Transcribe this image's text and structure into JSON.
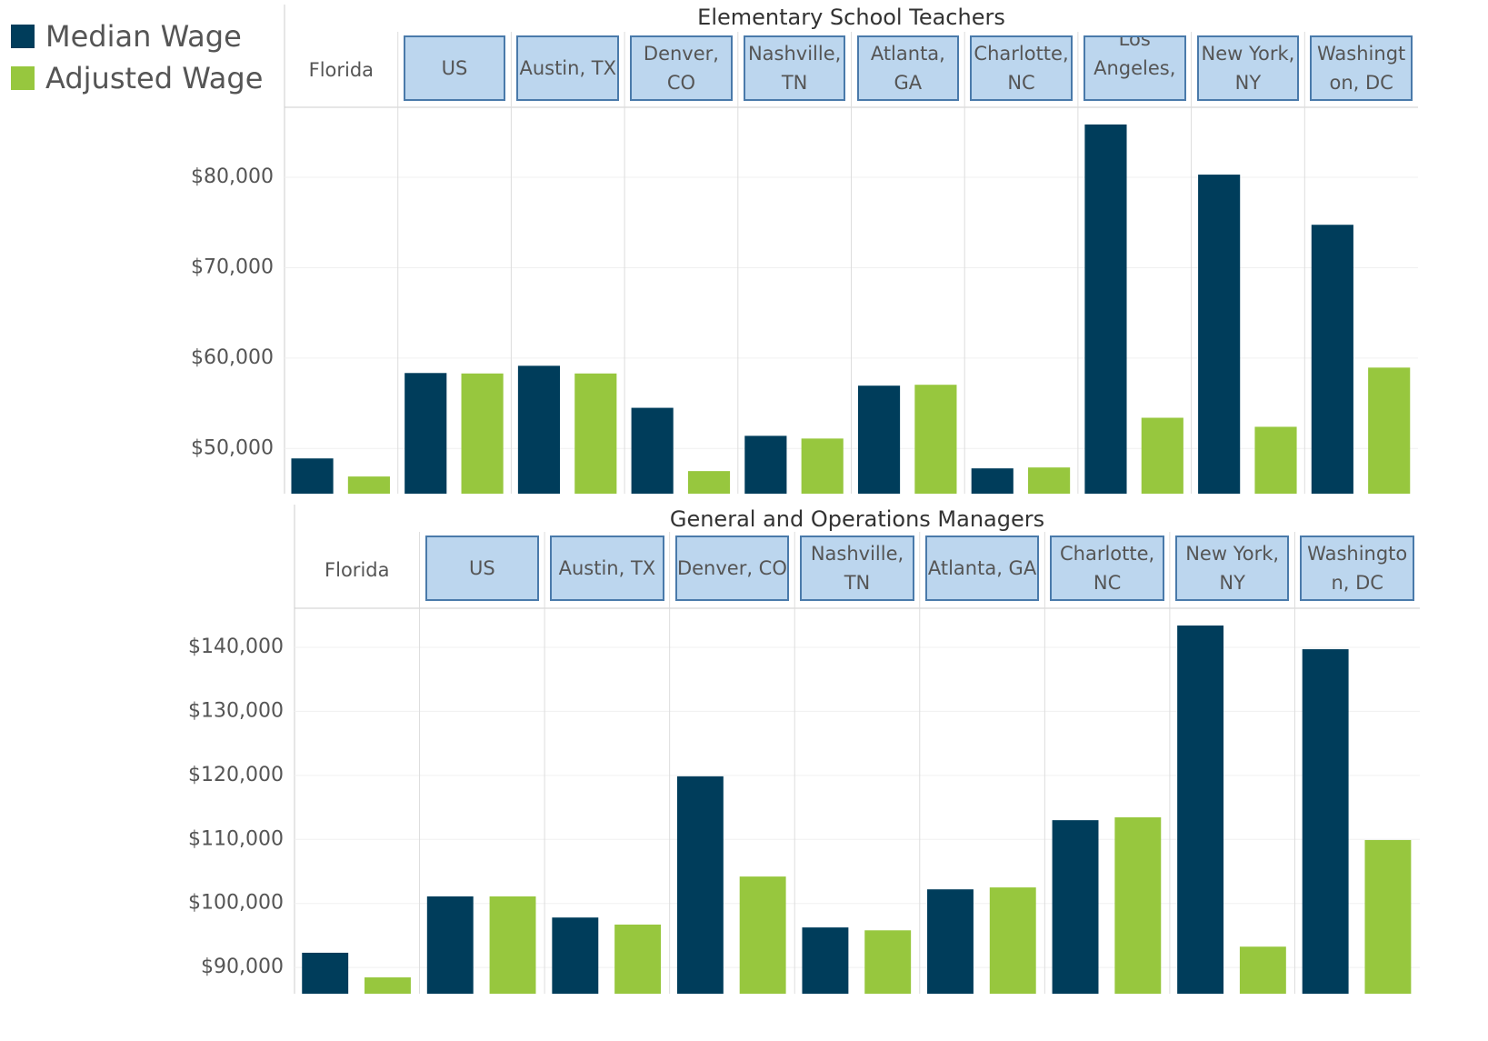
{
  "chart_data": [
    {
      "type": "bar",
      "title": "Elementary School Teachers",
      "categories": [
        "Florida",
        "US",
        "Austin, TX",
        "Denver, CO",
        "Nashville, TN",
        "Atlanta, GA",
        "Charlotte, NC",
        "Los Angeles, ..",
        "New York, NY",
        "Washington, DC"
      ],
      "series": [
        {
          "name": "Median Wage",
          "color": "#003d5b",
          "values": [
            48900,
            58350,
            59150,
            54500,
            51400,
            56950,
            47800,
            85850,
            80300,
            74750
          ]
        },
        {
          "name": "Adjusted Wage",
          "color": "#97c73e",
          "values": [
            46900,
            58300,
            58300,
            47500,
            51100,
            57050,
            47900,
            53400,
            52400,
            58950
          ]
        }
      ],
      "ylim": [
        45000,
        87750
      ],
      "yticks": [
        {
          "value": 50000,
          "label": "$50,000"
        },
        {
          "value": 60000,
          "label": "$60,000"
        },
        {
          "value": 70000,
          "label": "$70,000"
        },
        {
          "value": 80000,
          "label": "$80,000"
        }
      ],
      "grid": true
    },
    {
      "type": "bar",
      "title": "General and Operations Managers",
      "categories": [
        "Florida",
        "US",
        "Austin, TX",
        "Denver, CO",
        "Nashville, TN",
        "Atlanta, GA",
        "Charlotte, NC",
        "New York, NY",
        "Washington, DC"
      ],
      "series": [
        {
          "name": "Median Wage",
          "color": "#003d5b",
          "values": [
            92300,
            101100,
            97800,
            119850,
            96250,
            102200,
            113000,
            143400,
            139700
          ]
        },
        {
          "name": "Adjusted Wage",
          "color": "#97c73e",
          "values": [
            88450,
            101100,
            96700,
            104200,
            95800,
            102500,
            113450,
            93250,
            109900
          ]
        }
      ],
      "ylim": [
        85900,
        146100
      ],
      "yticks": [
        {
          "value": 90000,
          "label": "$90,000"
        },
        {
          "value": 100000,
          "label": "$100,000"
        },
        {
          "value": 110000,
          "label": "$110,000"
        },
        {
          "value": 120000,
          "label": "$120,000"
        },
        {
          "value": 130000,
          "label": "$130,000"
        },
        {
          "value": 140000,
          "label": "$140,000"
        }
      ],
      "grid": true
    }
  ]
}
